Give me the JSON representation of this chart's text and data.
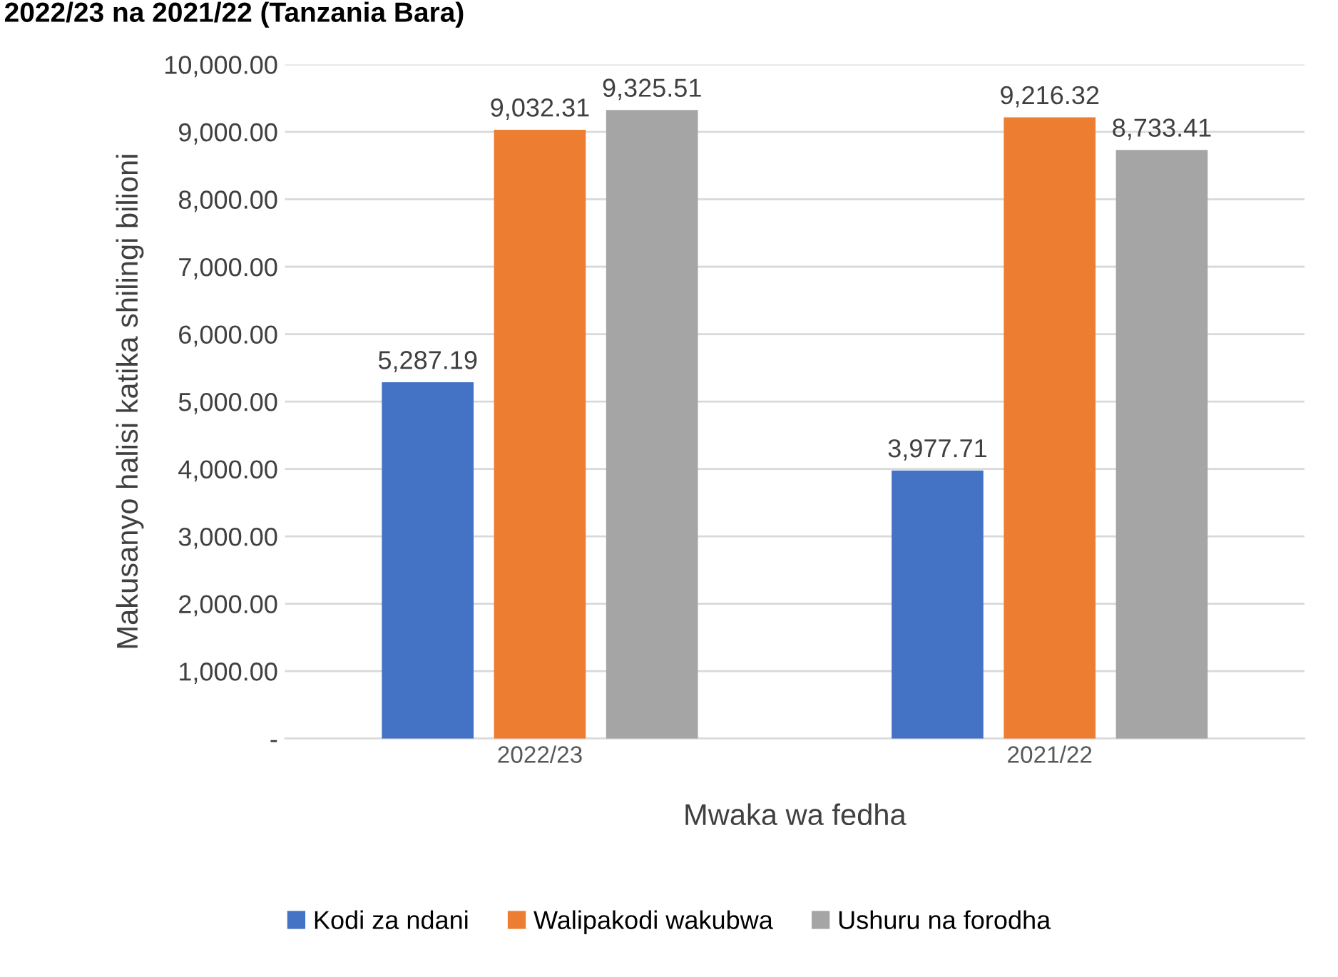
{
  "chart_data": {
    "type": "bar",
    "title": "2022/23 na 2021/22 (Tanzania Bara)",
    "xlabel": "Mwaka wa fedha",
    "ylabel": "Makusanyo halisi katika shilingi bilioni",
    "categories": [
      "2022/23",
      "2021/22"
    ],
    "series": [
      {
        "name": "Kodi za ndani",
        "color": "#4472c4",
        "values": [
          5287.19,
          3977.71
        ],
        "value_labels": [
          "5,287.19",
          "3,977.71"
        ]
      },
      {
        "name": "Walipakodi wakubwa",
        "color": "#ed7d31",
        "values": [
          9032.31,
          9216.32
        ],
        "value_labels": [
          "9,032.31",
          "9,216.32"
        ]
      },
      {
        "name": "Ushuru na forodha",
        "color": "#a5a5a5",
        "values": [
          9325.51,
          8733.41
        ],
        "value_labels": [
          "9,325.51",
          "8,733.41"
        ]
      }
    ],
    "ylim": [
      0,
      10000
    ],
    "yticks": [
      {
        "value": 0,
        "label": "-"
      },
      {
        "value": 1000,
        "label": "1,000.00"
      },
      {
        "value": 2000,
        "label": "2,000.00"
      },
      {
        "value": 3000,
        "label": "3,000.00"
      },
      {
        "value": 4000,
        "label": "4,000.00"
      },
      {
        "value": 5000,
        "label": "5,000.00"
      },
      {
        "value": 6000,
        "label": "6,000.00"
      },
      {
        "value": 7000,
        "label": "7,000.00"
      },
      {
        "value": 8000,
        "label": "8,000.00"
      },
      {
        "value": 9000,
        "label": "9,000.00"
      },
      {
        "value": 10000,
        "label": "10,000.00"
      }
    ],
    "grid": "y",
    "legend": "bottom"
  }
}
